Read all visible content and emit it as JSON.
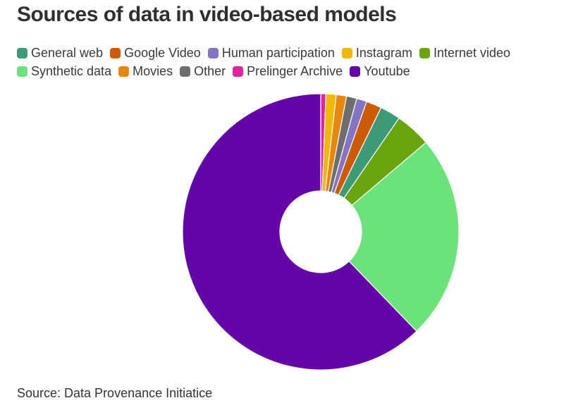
{
  "chart_data": {
    "type": "pie",
    "variant": "donut",
    "title": "Sources of data in video-based models",
    "source": "Source: Data Provenance Initiatice",
    "legend_position": "top",
    "start_angle_deg": 0,
    "direction": "clockwise",
    "slices": [
      {
        "label": "Prelinger Archive",
        "value": 0.6,
        "color": "#e0249a"
      },
      {
        "label": "Instagram",
        "value": 1.2,
        "color": "#f2b705"
      },
      {
        "label": "Movies",
        "value": 1.2,
        "color": "#e8870e"
      },
      {
        "label": "Other",
        "value": 1.2,
        "color": "#6e6e6e"
      },
      {
        "label": "Human participation",
        "value": 1.2,
        "color": "#8573c4"
      },
      {
        "label": "Google Video",
        "value": 1.8,
        "color": "#cc5a06"
      },
      {
        "label": "General web",
        "value": 2.4,
        "color": "#3c9a78"
      },
      {
        "label": "Internet video",
        "value": 4.2,
        "color": "#6aa40e"
      },
      {
        "label": "Synthetic data",
        "value": 24.0,
        "color": "#6ce27b"
      },
      {
        "label": "Youtube",
        "value": 62.2,
        "color": "#6405a8"
      }
    ],
    "legend_order": [
      "General web",
      "Google Video",
      "Human participation",
      "Instagram",
      "Internet video",
      "Synthetic data",
      "Movies",
      "Other",
      "Prelinger Archive",
      "Youtube"
    ]
  }
}
